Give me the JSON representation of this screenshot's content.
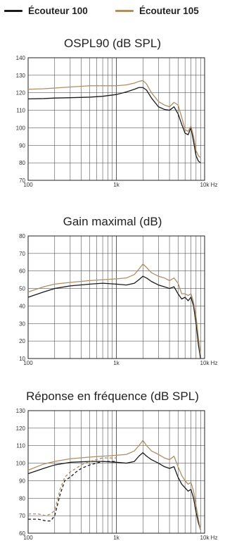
{
  "legend": [
    {
      "name": "Écouteur 100",
      "color": "#1a1a1a"
    },
    {
      "name": "Écouteur 105",
      "color": "#b08d62"
    }
  ],
  "chart_data": [
    {
      "type": "line",
      "title": "OSPL90 (dB SPL)",
      "xscale": "log",
      "xlim": [
        100,
        10000
      ],
      "ylim": [
        70,
        140
      ],
      "grid": true,
      "xticks": [
        {
          "value": 100,
          "label": "100"
        },
        {
          "value": 1000,
          "label": "1k"
        },
        {
          "value": 10000,
          "label": "10k Hz"
        }
      ],
      "yticks": [
        70,
        80,
        90,
        100,
        110,
        120,
        130,
        140
      ],
      "series": [
        {
          "name": "Écouteur 100",
          "color": "#1a1a1a",
          "dashed": false,
          "x": [
            100,
            150,
            200,
            300,
            500,
            700,
            1000,
            1300,
            1600,
            1800,
            2000,
            2200,
            2500,
            3000,
            3500,
            4000,
            4500,
            5000,
            5500,
            6000,
            6500,
            7000,
            7500,
            8000,
            8500,
            9000
          ],
          "y": [
            116.5,
            116.7,
            117,
            117.2,
            117.5,
            118,
            119,
            120.5,
            122,
            123,
            123,
            121.5,
            117,
            112,
            110.5,
            110,
            112,
            108,
            102,
            97,
            96,
            100,
            92,
            84,
            81,
            80
          ]
        },
        {
          "name": "Écouteur 105",
          "color": "#b08d62",
          "dashed": false,
          "x": [
            100,
            150,
            200,
            300,
            500,
            700,
            1000,
            1300,
            1600,
            1800,
            2000,
            2200,
            2500,
            3000,
            3500,
            4000,
            4500,
            5000,
            5500,
            6000,
            6500,
            7000,
            7500,
            8000,
            8500,
            9000
          ],
          "y": [
            122,
            122.3,
            122.7,
            123.3,
            124,
            124,
            124,
            124.5,
            125.5,
            126.5,
            127,
            125,
            120,
            115,
            113,
            112,
            114.5,
            113,
            106,
            99,
            98,
            101,
            95,
            87,
            84,
            83
          ]
        }
      ]
    },
    {
      "type": "line",
      "title": "Gain maximal (dB)",
      "xscale": "log",
      "xlim": [
        100,
        10000
      ],
      "ylim": [
        10,
        80
      ],
      "grid": true,
      "xticks": [
        {
          "value": 100,
          "label": "100"
        },
        {
          "value": 1000,
          "label": "1k"
        },
        {
          "value": 10000,
          "label": "10k Hz"
        }
      ],
      "yticks": [
        10,
        20,
        30,
        40,
        50,
        60,
        70,
        80
      ],
      "series": [
        {
          "name": "Écouteur 100",
          "color": "#1a1a1a",
          "dashed": false,
          "x": [
            100,
            150,
            200,
            300,
            500,
            700,
            1000,
            1300,
            1600,
            1800,
            2000,
            2200,
            2500,
            3000,
            3500,
            4000,
            4500,
            5000,
            5500,
            6000,
            6500,
            7000,
            7500,
            8000,
            8500,
            9000
          ],
          "y": [
            45,
            48,
            50,
            51.5,
            52.5,
            53,
            52.5,
            52,
            53,
            55,
            57,
            56,
            54,
            52,
            51,
            50,
            51,
            47,
            44,
            45,
            43,
            45,
            40,
            30,
            18,
            10
          ]
        },
        {
          "name": "Écouteur 105",
          "color": "#b08d62",
          "dashed": false,
          "x": [
            100,
            150,
            200,
            300,
            500,
            700,
            1000,
            1300,
            1600,
            1800,
            2000,
            2200,
            2500,
            3000,
            3500,
            4000,
            4500,
            5000,
            5500,
            6000,
            6500,
            7000,
            7500,
            8000,
            8500,
            9000
          ],
          "y": [
            48,
            51,
            52.5,
            53.5,
            54.5,
            55,
            55.5,
            56,
            58,
            61,
            64,
            62,
            59,
            57,
            56,
            54.5,
            56,
            53,
            47,
            47,
            46,
            47,
            42,
            34,
            22,
            12
          ]
        }
      ]
    },
    {
      "type": "line",
      "title": "Réponse en fréquence (dB SPL)",
      "xscale": "log",
      "xlim": [
        100,
        10000
      ],
      "ylim": [
        60,
        130
      ],
      "grid": true,
      "xticks": [
        {
          "value": 100,
          "label": "100"
        },
        {
          "value": 1000,
          "label": "1k"
        },
        {
          "value": 10000,
          "label": "10k Hz"
        }
      ],
      "yticks": [
        60,
        70,
        80,
        90,
        100,
        110,
        120,
        130
      ],
      "series": [
        {
          "name": "Écouteur 100",
          "color": "#1a1a1a",
          "dashed": false,
          "x": [
            100,
            150,
            200,
            300,
            500,
            700,
            1000,
            1300,
            1600,
            1800,
            2000,
            2200,
            2500,
            3000,
            3500,
            4000,
            4500,
            5000,
            5500,
            6000,
            6500,
            7000,
            7500,
            8000,
            8500,
            9000
          ],
          "y": [
            94,
            97,
            99,
            100.5,
            101,
            101,
            100.5,
            100,
            101,
            104,
            106,
            104,
            102,
            100,
            98,
            97,
            98,
            92,
            88,
            86,
            84,
            85,
            80,
            72,
            66,
            62
          ]
        },
        {
          "name": "Écouteur 105",
          "color": "#b08d62",
          "dashed": false,
          "x": [
            100,
            150,
            200,
            300,
            500,
            700,
            1000,
            1300,
            1600,
            1800,
            2000,
            2200,
            2500,
            3000,
            3500,
            4000,
            4500,
            5000,
            5500,
            6000,
            6500,
            7000,
            7500,
            8000,
            8500,
            9000
          ],
          "y": [
            96,
            99.5,
            101,
            102.5,
            103.5,
            104,
            104.5,
            105,
            107,
            110,
            113,
            110,
            107,
            105,
            103,
            102,
            104,
            98,
            93,
            90,
            88,
            89,
            84,
            76,
            68,
            62
          ]
        },
        {
          "name": "Écouteur 100",
          "color": "#1a1a1a",
          "dashed": true,
          "x": [
            100,
            130,
            160,
            180,
            200,
            230,
            260,
            300,
            350,
            400,
            500,
            700,
            1000
          ],
          "y": [
            68,
            68,
            67,
            67,
            70,
            82,
            90,
            92,
            95,
            97,
            99,
            101,
            101
          ]
        },
        {
          "name": "Écouteur 105",
          "color": "#b08d62",
          "dashed": true,
          "x": [
            100,
            130,
            160,
            180,
            200,
            230,
            260,
            300,
            350,
            400,
            500,
            700,
            1000
          ],
          "y": [
            71,
            71,
            70,
            71,
            73,
            85,
            92,
            95,
            97,
            99,
            101,
            103,
            103
          ]
        }
      ]
    }
  ]
}
